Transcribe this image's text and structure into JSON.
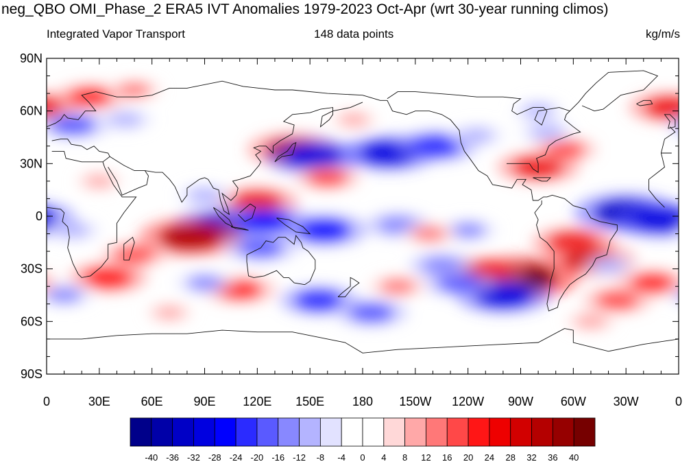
{
  "title": "neg_QBO OMI_Phase_2 ERA5 IVT Anomalies 1979-2023 Oct-Apr (wrt 30-year running climos)",
  "subtitle_left": "Integrated Vapor Transport",
  "subtitle_center": "148 data points",
  "subtitle_right": "kg/m/s",
  "lat_labels": [
    "90N",
    "60N",
    "30N",
    "0",
    "30S",
    "60S",
    "90S"
  ],
  "lon_labels": [
    "0",
    "30E",
    "60E",
    "90E",
    "120E",
    "150E",
    "180",
    "150W",
    "120W",
    "90W",
    "60W",
    "30W",
    "0"
  ],
  "colorbar": {
    "labels": [
      "-40",
      "-36",
      "-32",
      "-28",
      "-24",
      "-20",
      "-16",
      "-12",
      "-8",
      "-4",
      "0",
      "4",
      "8",
      "12",
      "16",
      "20",
      "24",
      "28",
      "32",
      "36",
      "40"
    ],
    "colors": [
      "#00008a",
      "#0000a8",
      "#0000c6",
      "#0000e0",
      "#0000ff",
      "#2b2bff",
      "#5a5aff",
      "#8888ff",
      "#b4b4ff",
      "#e2e2ff",
      "#ffffff",
      "#ffffff",
      "#ffd8d8",
      "#ffa8a8",
      "#ff7878",
      "#ff4848",
      "#ff1616",
      "#ee0000",
      "#d20000",
      "#b40000",
      "#960000",
      "#760000"
    ]
  },
  "anomalies": [
    {
      "lat": 68,
      "lon": 25,
      "value": 20
    },
    {
      "lat": 72,
      "lon": 50,
      "value": 12
    },
    {
      "lat": 62,
      "lon": 355,
      "value": 24
    },
    {
      "lat": 52,
      "lon": 15,
      "value": -20
    },
    {
      "lat": 55,
      "lon": 45,
      "value": -12
    },
    {
      "lat": 38,
      "lon": 140,
      "value": 28
    },
    {
      "lat": 34,
      "lon": 152,
      "value": -30
    },
    {
      "lat": 36,
      "lon": 195,
      "value": -30
    },
    {
      "lat": 40,
      "lon": 222,
      "value": -24
    },
    {
      "lat": 22,
      "lon": 160,
      "value": 16
    },
    {
      "lat": 28,
      "lon": 280,
      "value": 24
    },
    {
      "lat": 38,
      "lon": 295,
      "value": 16
    },
    {
      "lat": 48,
      "lon": 285,
      "value": -12
    },
    {
      "lat": 46,
      "lon": 245,
      "value": -12
    },
    {
      "lat": 8,
      "lon": 120,
      "value": 24
    },
    {
      "lat": 12,
      "lon": 90,
      "value": -12
    },
    {
      "lat": 2,
      "lon": 330,
      "value": -34
    },
    {
      "lat": -2,
      "lon": 350,
      "value": -30
    },
    {
      "lat": -5,
      "lon": 100,
      "value": -30
    },
    {
      "lat": -3,
      "lon": 125,
      "value": -26
    },
    {
      "lat": -8,
      "lon": 158,
      "value": -26
    },
    {
      "lat": -5,
      "lon": 200,
      "value": -16
    },
    {
      "lat": -8,
      "lon": 240,
      "value": -14
    },
    {
      "lat": -10,
      "lon": 218,
      "value": 12
    },
    {
      "lat": -12,
      "lon": 82,
      "value": 34
    },
    {
      "lat": -22,
      "lon": 50,
      "value": 16
    },
    {
      "lat": -18,
      "lon": 122,
      "value": -20
    },
    {
      "lat": -35,
      "lon": 270,
      "value": 40
    },
    {
      "lat": -32,
      "lon": 250,
      "value": 24
    },
    {
      "lat": -15,
      "lon": 300,
      "value": 24
    },
    {
      "lat": -25,
      "lon": 310,
      "value": 28
    },
    {
      "lat": -45,
      "lon": 260,
      "value": -30
    },
    {
      "lat": -38,
      "lon": 235,
      "value": -20
    },
    {
      "lat": -28,
      "lon": 225,
      "value": -16
    },
    {
      "lat": -48,
      "lon": 155,
      "value": -22
    },
    {
      "lat": -55,
      "lon": 185,
      "value": -20
    },
    {
      "lat": -42,
      "lon": 110,
      "value": 20
    },
    {
      "lat": -38,
      "lon": 90,
      "value": -14
    },
    {
      "lat": -35,
      "lon": 35,
      "value": 22
    },
    {
      "lat": -45,
      "lon": 10,
      "value": -14
    },
    {
      "lat": -48,
      "lon": 325,
      "value": 18
    },
    {
      "lat": -38,
      "lon": 345,
      "value": 20
    },
    {
      "lat": -28,
      "lon": 320,
      "value": -12
    },
    {
      "lat": -40,
      "lon": 200,
      "value": 14
    },
    {
      "lat": 60,
      "lon": 280,
      "value": -10
    },
    {
      "lat": 55,
      "lon": 175,
      "value": 8
    },
    {
      "lat": -60,
      "lon": 310,
      "value": 10
    },
    {
      "lat": -55,
      "lon": 70,
      "value": 8
    },
    {
      "lat": 20,
      "lon": 30,
      "value": 8
    },
    {
      "lat": -8,
      "lon": 15,
      "value": -12
    }
  ]
}
